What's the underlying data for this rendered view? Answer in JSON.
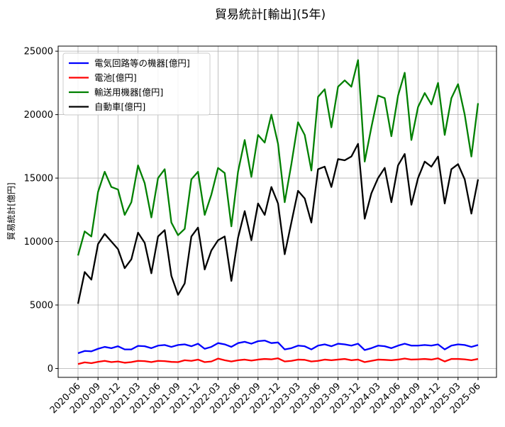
{
  "chart_data": {
    "type": "line",
    "title": "貿易統計[輸出](5年)",
    "xlabel": "",
    "ylabel": "貿易統計[億円]",
    "ylim": [
      -700,
      25400
    ],
    "yticks": [
      0,
      5000,
      10000,
      15000,
      20000,
      25000
    ],
    "x": [
      "2020-06",
      "2020-07",
      "2020-08",
      "2020-09",
      "2020-10",
      "2020-11",
      "2020-12",
      "2021-01",
      "2021-02",
      "2021-03",
      "2021-04",
      "2021-05",
      "2021-06",
      "2021-07",
      "2021-08",
      "2021-09",
      "2021-10",
      "2021-11",
      "2021-12",
      "2022-01",
      "2022-02",
      "2022-03",
      "2022-04",
      "2022-05",
      "2022-06",
      "2022-07",
      "2022-08",
      "2022-09",
      "2022-10",
      "2022-11",
      "2022-12",
      "2023-01",
      "2023-02",
      "2023-03",
      "2023-04",
      "2023-05",
      "2023-06",
      "2023-07",
      "2023-08",
      "2023-09",
      "2023-10",
      "2023-11",
      "2023-12",
      "2024-01",
      "2024-02",
      "2024-03",
      "2024-04",
      "2024-05",
      "2024-06",
      "2024-07",
      "2024-08",
      "2024-09",
      "2024-10",
      "2024-11",
      "2024-12",
      "2025-01",
      "2025-02",
      "2025-03",
      "2025-04",
      "2025-05",
      "2025-06"
    ],
    "xtick_labels": [
      "2020-06",
      "2020-09",
      "2020-12",
      "2021-03",
      "2021-06",
      "2021-09",
      "2021-12",
      "2022-03",
      "2022-06",
      "2022-09",
      "2022-12",
      "2023-03",
      "2023-06",
      "2023-09",
      "2023-12",
      "2024-03",
      "2024-06",
      "2024-09",
      "2024-12",
      "2025-03",
      "2025-06"
    ],
    "grid": true,
    "legend_position": "top-left",
    "series": [
      {
        "name": "電気回路等の機器[億円]",
        "color": "#0000ff",
        "values": [
          1200,
          1380,
          1350,
          1550,
          1700,
          1600,
          1750,
          1500,
          1500,
          1780,
          1750,
          1600,
          1800,
          1850,
          1700,
          1850,
          1900,
          1750,
          1950,
          1550,
          1700,
          2000,
          1900,
          1700,
          2000,
          2100,
          1950,
          2150,
          2200,
          2000,
          2050,
          1500,
          1600,
          1800,
          1750,
          1500,
          1800,
          1900,
          1750,
          1950,
          1900,
          1800,
          1950,
          1450,
          1600,
          1800,
          1750,
          1600,
          1800,
          1950,
          1800,
          1800,
          1850,
          1800,
          1900,
          1500,
          1800,
          1900,
          1850,
          1700,
          1850
        ]
      },
      {
        "name": "電池[億円]",
        "color": "#ff0000",
        "values": [
          350,
          480,
          420,
          520,
          600,
          500,
          550,
          450,
          500,
          600,
          580,
          500,
          600,
          580,
          520,
          500,
          650,
          600,
          700,
          500,
          550,
          780,
          650,
          550,
          650,
          700,
          620,
          700,
          750,
          720,
          800,
          550,
          600,
          700,
          680,
          550,
          600,
          700,
          650,
          700,
          750,
          650,
          700,
          500,
          600,
          700,
          680,
          650,
          700,
          780,
          700,
          720,
          750,
          700,
          800,
          550,
          750,
          750,
          720,
          650,
          750
        ]
      },
      {
        "name": "輸送用機器[億円]",
        "color": "#008000",
        "values": [
          8900,
          10800,
          10400,
          13900,
          15500,
          14300,
          14100,
          12100,
          13100,
          16000,
          14600,
          11900,
          15000,
          15700,
          11500,
          10500,
          11000,
          14900,
          15500,
          12100,
          13700,
          15800,
          15400,
          11200,
          15500,
          18000,
          15100,
          18400,
          17800,
          20000,
          17700,
          13100,
          16100,
          19400,
          18400,
          15600,
          21400,
          22000,
          19000,
          22200,
          22700,
          22200,
          24300,
          16300,
          19000,
          21500,
          21300,
          18300,
          21500,
          23300,
          18000,
          20600,
          21700,
          20800,
          22500,
          18400,
          21300,
          22400,
          20000,
          16700,
          20900
        ]
      },
      {
        "name": "自動車[億円]",
        "color": "#000000",
        "values": [
          5100,
          7600,
          7000,
          9800,
          10600,
          10000,
          9400,
          7900,
          8600,
          10700,
          9900,
          7500,
          10400,
          10900,
          7300,
          5800,
          6700,
          10400,
          11100,
          7800,
          9300,
          10100,
          10400,
          6900,
          10300,
          12400,
          10100,
          13000,
          12100,
          14300,
          13000,
          9000,
          11500,
          14000,
          13400,
          11500,
          15700,
          15900,
          14300,
          16500,
          16400,
          16700,
          17700,
          11800,
          13800,
          15000,
          15800,
          13100,
          16000,
          16900,
          12900,
          15000,
          16300,
          15900,
          16700,
          13000,
          15700,
          16100,
          14900,
          12200,
          14900
        ]
      }
    ]
  }
}
